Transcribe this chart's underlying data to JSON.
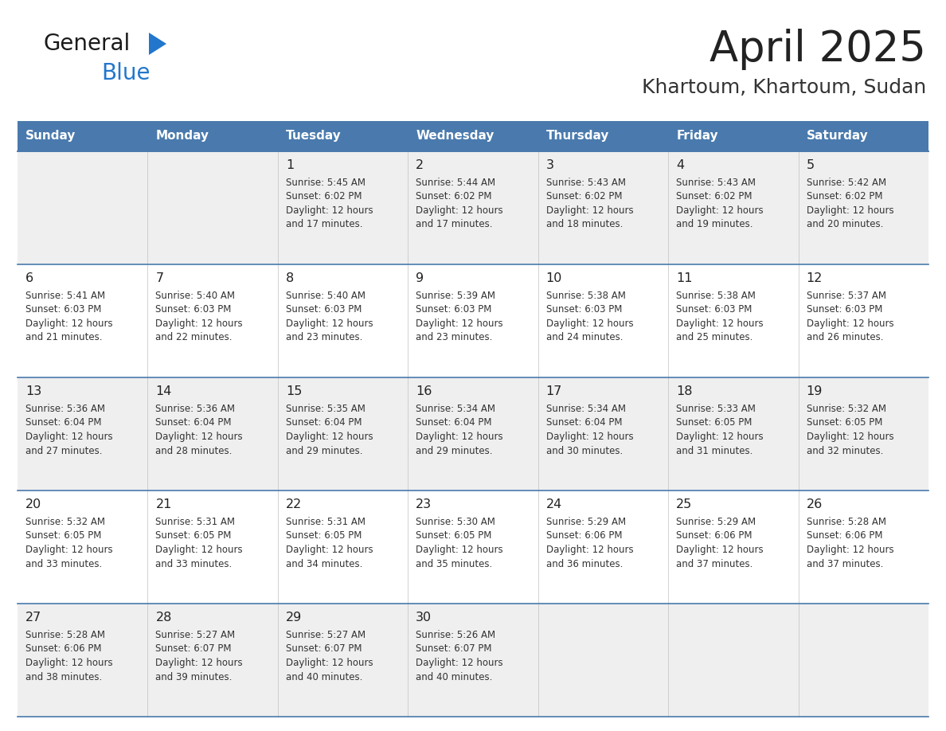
{
  "title": "April 2025",
  "subtitle": "Khartoum, Khartoum, Sudan",
  "days_of_week": [
    "Sunday",
    "Monday",
    "Tuesday",
    "Wednesday",
    "Thursday",
    "Friday",
    "Saturday"
  ],
  "header_bg": "#4a7aad",
  "header_text": "#ffffff",
  "row_bg_odd": "#efefef",
  "row_bg_even": "#ffffff",
  "cell_border": "#4a7aad",
  "day_num_color": "#222222",
  "text_color": "#333333",
  "title_color": "#222222",
  "subtitle_color": "#333333",
  "logo_general_color": "#1a1a1a",
  "logo_blue_color": "#2277cc",
  "logo_triangle_color": "#2277cc",
  "calendar": [
    [
      {
        "day": null,
        "sunrise": null,
        "sunset": null,
        "daylight_line1": null,
        "daylight_line2": null
      },
      {
        "day": null,
        "sunrise": null,
        "sunset": null,
        "daylight_line1": null,
        "daylight_line2": null
      },
      {
        "day": 1,
        "sunrise": "5:45 AM",
        "sunset": "6:02 PM",
        "daylight_line1": "Daylight: 12 hours",
        "daylight_line2": "and 17 minutes."
      },
      {
        "day": 2,
        "sunrise": "5:44 AM",
        "sunset": "6:02 PM",
        "daylight_line1": "Daylight: 12 hours",
        "daylight_line2": "and 17 minutes."
      },
      {
        "day": 3,
        "sunrise": "5:43 AM",
        "sunset": "6:02 PM",
        "daylight_line1": "Daylight: 12 hours",
        "daylight_line2": "and 18 minutes."
      },
      {
        "day": 4,
        "sunrise": "5:43 AM",
        "sunset": "6:02 PM",
        "daylight_line1": "Daylight: 12 hours",
        "daylight_line2": "and 19 minutes."
      },
      {
        "day": 5,
        "sunrise": "5:42 AM",
        "sunset": "6:02 PM",
        "daylight_line1": "Daylight: 12 hours",
        "daylight_line2": "and 20 minutes."
      }
    ],
    [
      {
        "day": 6,
        "sunrise": "5:41 AM",
        "sunset": "6:03 PM",
        "daylight_line1": "Daylight: 12 hours",
        "daylight_line2": "and 21 minutes."
      },
      {
        "day": 7,
        "sunrise": "5:40 AM",
        "sunset": "6:03 PM",
        "daylight_line1": "Daylight: 12 hours",
        "daylight_line2": "and 22 minutes."
      },
      {
        "day": 8,
        "sunrise": "5:40 AM",
        "sunset": "6:03 PM",
        "daylight_line1": "Daylight: 12 hours",
        "daylight_line2": "and 23 minutes."
      },
      {
        "day": 9,
        "sunrise": "5:39 AM",
        "sunset": "6:03 PM",
        "daylight_line1": "Daylight: 12 hours",
        "daylight_line2": "and 23 minutes."
      },
      {
        "day": 10,
        "sunrise": "5:38 AM",
        "sunset": "6:03 PM",
        "daylight_line1": "Daylight: 12 hours",
        "daylight_line2": "and 24 minutes."
      },
      {
        "day": 11,
        "sunrise": "5:38 AM",
        "sunset": "6:03 PM",
        "daylight_line1": "Daylight: 12 hours",
        "daylight_line2": "and 25 minutes."
      },
      {
        "day": 12,
        "sunrise": "5:37 AM",
        "sunset": "6:03 PM",
        "daylight_line1": "Daylight: 12 hours",
        "daylight_line2": "and 26 minutes."
      }
    ],
    [
      {
        "day": 13,
        "sunrise": "5:36 AM",
        "sunset": "6:04 PM",
        "daylight_line1": "Daylight: 12 hours",
        "daylight_line2": "and 27 minutes."
      },
      {
        "day": 14,
        "sunrise": "5:36 AM",
        "sunset": "6:04 PM",
        "daylight_line1": "Daylight: 12 hours",
        "daylight_line2": "and 28 minutes."
      },
      {
        "day": 15,
        "sunrise": "5:35 AM",
        "sunset": "6:04 PM",
        "daylight_line1": "Daylight: 12 hours",
        "daylight_line2": "and 29 minutes."
      },
      {
        "day": 16,
        "sunrise": "5:34 AM",
        "sunset": "6:04 PM",
        "daylight_line1": "Daylight: 12 hours",
        "daylight_line2": "and 29 minutes."
      },
      {
        "day": 17,
        "sunrise": "5:34 AM",
        "sunset": "6:04 PM",
        "daylight_line1": "Daylight: 12 hours",
        "daylight_line2": "and 30 minutes."
      },
      {
        "day": 18,
        "sunrise": "5:33 AM",
        "sunset": "6:05 PM",
        "daylight_line1": "Daylight: 12 hours",
        "daylight_line2": "and 31 minutes."
      },
      {
        "day": 19,
        "sunrise": "5:32 AM",
        "sunset": "6:05 PM",
        "daylight_line1": "Daylight: 12 hours",
        "daylight_line2": "and 32 minutes."
      }
    ],
    [
      {
        "day": 20,
        "sunrise": "5:32 AM",
        "sunset": "6:05 PM",
        "daylight_line1": "Daylight: 12 hours",
        "daylight_line2": "and 33 minutes."
      },
      {
        "day": 21,
        "sunrise": "5:31 AM",
        "sunset": "6:05 PM",
        "daylight_line1": "Daylight: 12 hours",
        "daylight_line2": "and 33 minutes."
      },
      {
        "day": 22,
        "sunrise": "5:31 AM",
        "sunset": "6:05 PM",
        "daylight_line1": "Daylight: 12 hours",
        "daylight_line2": "and 34 minutes."
      },
      {
        "day": 23,
        "sunrise": "5:30 AM",
        "sunset": "6:05 PM",
        "daylight_line1": "Daylight: 12 hours",
        "daylight_line2": "and 35 minutes."
      },
      {
        "day": 24,
        "sunrise": "5:29 AM",
        "sunset": "6:06 PM",
        "daylight_line1": "Daylight: 12 hours",
        "daylight_line2": "and 36 minutes."
      },
      {
        "day": 25,
        "sunrise": "5:29 AM",
        "sunset": "6:06 PM",
        "daylight_line1": "Daylight: 12 hours",
        "daylight_line2": "and 37 minutes."
      },
      {
        "day": 26,
        "sunrise": "5:28 AM",
        "sunset": "6:06 PM",
        "daylight_line1": "Daylight: 12 hours",
        "daylight_line2": "and 37 minutes."
      }
    ],
    [
      {
        "day": 27,
        "sunrise": "5:28 AM",
        "sunset": "6:06 PM",
        "daylight_line1": "Daylight: 12 hours",
        "daylight_line2": "and 38 minutes."
      },
      {
        "day": 28,
        "sunrise": "5:27 AM",
        "sunset": "6:07 PM",
        "daylight_line1": "Daylight: 12 hours",
        "daylight_line2": "and 39 minutes."
      },
      {
        "day": 29,
        "sunrise": "5:27 AM",
        "sunset": "6:07 PM",
        "daylight_line1": "Daylight: 12 hours",
        "daylight_line2": "and 40 minutes."
      },
      {
        "day": 30,
        "sunrise": "5:26 AM",
        "sunset": "6:07 PM",
        "daylight_line1": "Daylight: 12 hours",
        "daylight_line2": "and 40 minutes."
      },
      {
        "day": null,
        "sunrise": null,
        "sunset": null,
        "daylight_line1": null,
        "daylight_line2": null
      },
      {
        "day": null,
        "sunrise": null,
        "sunset": null,
        "daylight_line1": null,
        "daylight_line2": null
      },
      {
        "day": null,
        "sunrise": null,
        "sunset": null,
        "daylight_line1": null,
        "daylight_line2": null
      }
    ]
  ],
  "n_rows": 5,
  "n_cols": 7,
  "fig_width": 11.88,
  "fig_height": 9.18
}
